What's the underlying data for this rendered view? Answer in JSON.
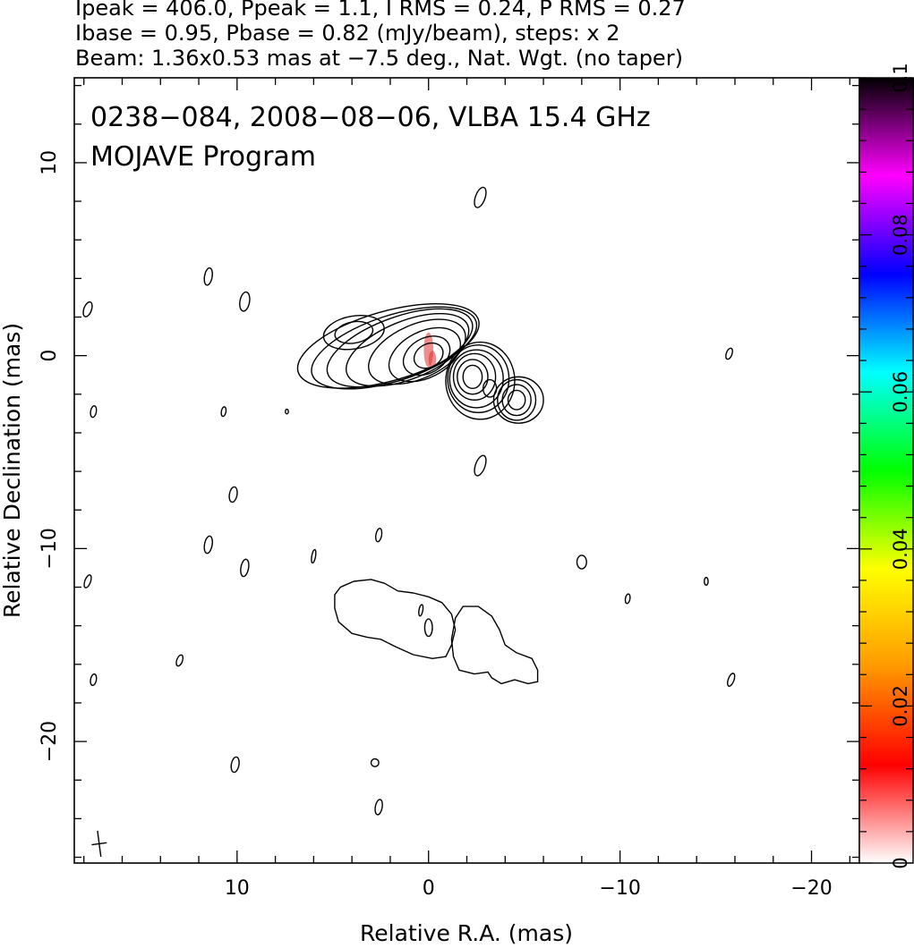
{
  "chart_data": {
    "type": "contour",
    "header_lines": [
      "Ipeak = 406.0, Ppeak = 1.1, I RMS = 0.24, P RMS = 0.27",
      "Ibase = 0.95, Pbase = 0.82 (mJy/beam), steps: x 2",
      "Beam: 1.36x0.53 mas at −7.5 deg., Nat. Wgt. (no taper)"
    ],
    "annotations": [
      "0238−084, 2008−08−06, VLBA 15.4 GHz",
      "MOJAVE Program"
    ],
    "xlabel": "Relative R.A. (mas)",
    "ylabel": "Relative Declination (mas)",
    "xlim": [
      18.5,
      -22.5
    ],
    "ylim": [
      -26.3,
      14.4
    ],
    "x_ticks": [
      {
        "value": 10,
        "label": "10"
      },
      {
        "value": 0,
        "label": "0"
      },
      {
        "value": -10,
        "label": "−10"
      },
      {
        "value": -20,
        "label": "−20"
      }
    ],
    "y_ticks": [
      {
        "value": 10,
        "label": "10"
      },
      {
        "value": 0,
        "label": "0"
      },
      {
        "value": -10,
        "label": "−10"
      },
      {
        "value": -20,
        "label": "−20"
      }
    ],
    "colorbar": {
      "range": [
        0,
        0.1
      ],
      "ticks": [
        {
          "value": 0,
          "label": "0"
        },
        {
          "value": 0.02,
          "label": "0.02"
        },
        {
          "value": 0.04,
          "label": "0.04"
        },
        {
          "value": 0.06,
          "label": "0.06"
        },
        {
          "value": 0.08,
          "label": "0.08"
        },
        {
          "value": 0.1,
          "label": "0.1"
        }
      ],
      "colors": [
        "#ffffff",
        "#ff0000",
        "#ff9900",
        "#ffff00",
        "#00ff00",
        "#00ffff",
        "#0000ff",
        "#ff00ff",
        "#000000"
      ]
    },
    "beam": {
      "major": 1.36,
      "minor": 0.53,
      "pa_deg": -7.5
    },
    "contour_line_color": "#000000",
    "polarization_color": "#e03030",
    "jet_contours": [
      {
        "ra": 0,
        "dec": 0,
        "rx": 0.8,
        "ry": 0.6,
        "rot": -30
      },
      {
        "ra": 0.1,
        "dec": 0,
        "rx": 1.3,
        "ry": 0.9,
        "rot": -30
      },
      {
        "ra": 0.2,
        "dec": 0.05,
        "rx": 2.0,
        "ry": 1.2,
        "rot": -27
      },
      {
        "ra": 0.6,
        "dec": 0.2,
        "rx": 2.7,
        "ry": 1.4,
        "rot": -24
      },
      {
        "ra": 1.1,
        "dec": 0.3,
        "rx": 3.4,
        "ry": 1.5,
        "rot": -22
      },
      {
        "ra": 1.5,
        "dec": 0.4,
        "rx": 4.0,
        "ry": 1.6,
        "rot": -20
      },
      {
        "ra": 1.8,
        "dec": 0.4,
        "rx": 4.5,
        "ry": 1.7,
        "rot": -18
      },
      {
        "ra": 2.1,
        "dec": 0.5,
        "rx": 4.9,
        "ry": 1.8,
        "rot": -16
      },
      {
        "ra": 3.9,
        "dec": 1.2,
        "rx": 1.0,
        "ry": 0.55,
        "rot": -10
      },
      {
        "ra": 3.9,
        "dec": 1.2,
        "rx": 1.6,
        "ry": 0.85,
        "rot": -10
      },
      {
        "ra": -2.3,
        "dec": -1.1,
        "rx": 0.5,
        "ry": 0.6,
        "rot": 0
      },
      {
        "ra": -2.3,
        "dec": -1.1,
        "rx": 0.8,
        "ry": 0.9,
        "rot": 0
      },
      {
        "ra": -2.4,
        "dec": -1.1,
        "rx": 1.1,
        "ry": 1.2,
        "rot": 0
      },
      {
        "ra": -2.5,
        "dec": -1.2,
        "rx": 1.4,
        "ry": 1.5,
        "rot": 0
      },
      {
        "ra": -2.6,
        "dec": -1.2,
        "rx": 1.6,
        "ry": 1.75,
        "rot": 0
      },
      {
        "ra": -2.7,
        "dec": -1.3,
        "rx": 1.8,
        "ry": 2.0,
        "rot": 0
      },
      {
        "ra": -3.2,
        "dec": -1.7,
        "rx": 0.35,
        "ry": 0.45,
        "rot": 0
      },
      {
        "ra": -4.6,
        "dec": -2.3,
        "rx": 0.45,
        "ry": 0.5,
        "rot": 0
      },
      {
        "ra": -4.6,
        "dec": -2.3,
        "rx": 0.75,
        "ry": 0.8,
        "rot": 0
      },
      {
        "ra": -4.6,
        "dec": -2.3,
        "rx": 1.0,
        "ry": 1.05,
        "rot": 0
      },
      {
        "ra": -4.7,
        "dec": -2.3,
        "rx": 1.3,
        "ry": 1.2,
        "rot": 0
      }
    ],
    "polarization_contours": [
      {
        "ra": 0.0,
        "dec": 0.3,
        "rx": 0.25,
        "ry": 0.9,
        "rot": 0
      },
      {
        "ra": -0.2,
        "dec": -0.2,
        "rx": 0.2,
        "ry": 0.45,
        "rot": 0
      }
    ],
    "pol_outlines": [
      [
        [
          4.9,
          -12.4
        ],
        [
          4.6,
          -12.0
        ],
        [
          3.9,
          -11.7
        ],
        [
          3.0,
          -11.6
        ],
        [
          2.3,
          -11.8
        ],
        [
          1.6,
          -12.2
        ],
        [
          0.8,
          -12.3
        ],
        [
          0.0,
          -12.5
        ],
        [
          -0.7,
          -12.8
        ],
        [
          -1.2,
          -13.4
        ],
        [
          -1.4,
          -14.2
        ],
        [
          -1.2,
          -15.0
        ],
        [
          -0.9,
          -15.6
        ],
        [
          -0.2,
          -15.7
        ],
        [
          0.8,
          -15.5
        ],
        [
          1.7,
          -15.1
        ],
        [
          2.5,
          -14.7
        ],
        [
          3.2,
          -14.6
        ],
        [
          4.0,
          -14.4
        ],
        [
          4.7,
          -13.8
        ],
        [
          4.9,
          -13.1
        ]
      ],
      [
        [
          -1.4,
          -13.6
        ],
        [
          -1.8,
          -13.0
        ],
        [
          -2.6,
          -13.0
        ],
        [
          -3.3,
          -13.5
        ],
        [
          -3.7,
          -14.2
        ],
        [
          -4.0,
          -15.0
        ],
        [
          -4.6,
          -15.4
        ],
        [
          -5.4,
          -15.7
        ],
        [
          -5.7,
          -16.3
        ],
        [
          -5.7,
          -16.9
        ],
        [
          -5.2,
          -17.0
        ],
        [
          -4.5,
          -16.8
        ],
        [
          -3.8,
          -17.0
        ],
        [
          -3.3,
          -16.7
        ],
        [
          -3.1,
          -16.4
        ],
        [
          -2.4,
          -16.5
        ],
        [
          -1.6,
          -16.3
        ],
        [
          -1.3,
          -15.6
        ],
        [
          -1.2,
          -14.7
        ]
      ]
    ],
    "noise_blobs": [
      {
        "ra": 2.6,
        "dec": 0.0,
        "kind": "vertical",
        "len": 0.0
      },
      {
        "ra": -2.7,
        "dec": 8.2,
        "rx": 0.25,
        "ry": 0.55,
        "rot": 20
      },
      {
        "ra": 11.5,
        "dec": 4.1,
        "rx": 0.2,
        "ry": 0.45,
        "rot": 10
      },
      {
        "ra": 9.6,
        "dec": 2.8,
        "rx": 0.25,
        "ry": 0.5,
        "rot": 10
      },
      {
        "ra": 17.8,
        "dec": 2.4,
        "rx": 0.2,
        "ry": 0.4,
        "rot": 20
      },
      {
        "ra": -15.7,
        "dec": 0.1,
        "rx": 0.15,
        "ry": 0.3,
        "rot": 20
      },
      {
        "ra": 17.5,
        "dec": -2.9,
        "rx": 0.15,
        "ry": 0.3,
        "rot": 10
      },
      {
        "ra": 10.7,
        "dec": -2.9,
        "rx": 0.12,
        "ry": 0.25,
        "rot": 10
      },
      {
        "ra": -2.7,
        "dec": -5.7,
        "rx": 0.25,
        "ry": 0.55,
        "rot": 20
      },
      {
        "ra": 10.2,
        "dec": -7.2,
        "rx": 0.2,
        "ry": 0.4,
        "rot": 10
      },
      {
        "ra": 11.5,
        "dec": -9.8,
        "rx": 0.2,
        "ry": 0.45,
        "rot": 10
      },
      {
        "ra": 9.6,
        "dec": -11.0,
        "rx": 0.2,
        "ry": 0.45,
        "rot": 10
      },
      {
        "ra": 2.6,
        "dec": -9.3,
        "rx": 0.15,
        "ry": 0.35,
        "rot": 10
      },
      {
        "ra": 17.8,
        "dec": -11.7,
        "rx": 0.15,
        "ry": 0.35,
        "rot": 20
      },
      {
        "ra": -8.0,
        "dec": -10.7,
        "rx": 0.25,
        "ry": 0.35,
        "rot": 0
      },
      {
        "ra": -10.4,
        "dec": -12.6,
        "rx": 0.12,
        "ry": 0.25,
        "rot": 10
      },
      {
        "ra": -14.5,
        "dec": -11.7,
        "rx": 0.1,
        "ry": 0.2,
        "rot": 0
      },
      {
        "ra": 13.0,
        "dec": -15.8,
        "rx": 0.15,
        "ry": 0.3,
        "rot": 20
      },
      {
        "ra": 17.5,
        "dec": -16.8,
        "rx": 0.15,
        "ry": 0.3,
        "rot": 10
      },
      {
        "ra": -15.8,
        "dec": -16.8,
        "rx": 0.15,
        "ry": 0.35,
        "rot": 20
      },
      {
        "ra": 0.4,
        "dec": -13.2,
        "rx": 0.1,
        "ry": 0.3,
        "rot": 10
      },
      {
        "ra": 0.0,
        "dec": -14.1,
        "rx": 0.2,
        "ry": 0.45,
        "rot": 0
      },
      {
        "ra": 10.1,
        "dec": -21.2,
        "rx": 0.2,
        "ry": 0.4,
        "rot": 10
      },
      {
        "ra": 2.8,
        "dec": -21.1,
        "rx": 0.2,
        "ry": 0.2,
        "rot": 0
      },
      {
        "ra": 2.6,
        "dec": -23.4,
        "rx": 0.18,
        "ry": 0.4,
        "rot": 10
      },
      {
        "ra": 6.0,
        "dec": -10.4,
        "rx": 0.1,
        "ry": 0.35,
        "rot": 10
      },
      {
        "ra": 7.4,
        "dec": -2.9,
        "rx": 0.08,
        "ry": 0.12,
        "rot": 0
      }
    ]
  }
}
